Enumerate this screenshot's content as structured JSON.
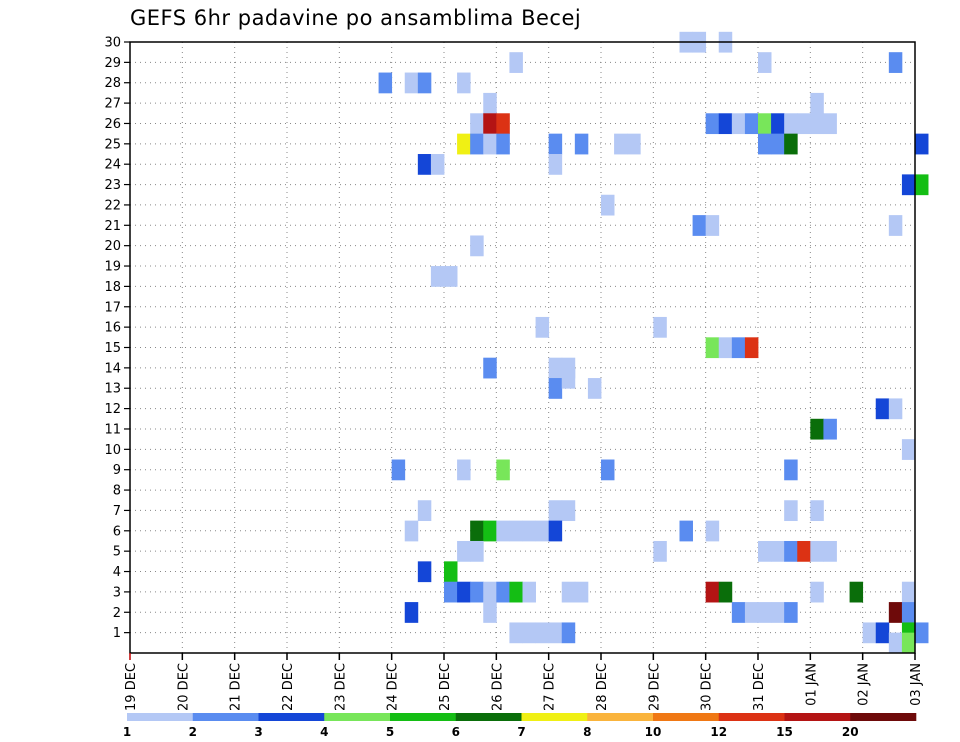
{
  "chart_data": {
    "type": "heatmap",
    "title": "GEFS 6hr padavine po ansamblima Becej",
    "x_ticks": [
      "19 DEC",
      "20 DEC",
      "21 DEC",
      "22 DEC",
      "23 DEC",
      "24 DEC",
      "25 DEC",
      "26 DEC",
      "27 DEC",
      "28 DEC",
      "29 DEC",
      "30 DEC",
      "31 DEC",
      "01 JAN",
      "02 JAN",
      "03 JAN"
    ],
    "x_range_days": [
      0,
      15
    ],
    "y_ticks": [
      1,
      2,
      3,
      4,
      5,
      6,
      7,
      8,
      9,
      10,
      11,
      12,
      13,
      14,
      15,
      16,
      17,
      18,
      19,
      20,
      21,
      22,
      23,
      24,
      25,
      26,
      27,
      28,
      29,
      30
    ],
    "y_range": [
      0,
      30
    ],
    "grid": true,
    "legend": {
      "placement": "bottom",
      "labels": [
        "1",
        "2",
        "3",
        "4",
        "5",
        "6",
        "7",
        "8",
        "10",
        "12",
        "15",
        "20"
      ],
      "colors": [
        "#b4c8f5",
        "#5a8cf0",
        "#1446d7",
        "#78e65a",
        "#14be14",
        "#0a6e0a",
        "#f0f014",
        "#fab43c",
        "#f07814",
        "#dc3214",
        "#b41414",
        "#6e0a0a"
      ]
    },
    "cell_width_days": 0.25,
    "cells": [
      {
        "x": 10.5,
        "y": 30,
        "c": 1
      },
      {
        "x": 10.75,
        "y": 30,
        "c": 1
      },
      {
        "x": 11.25,
        "y": 30,
        "c": 1
      },
      {
        "x": 7.25,
        "y": 29,
        "c": 1
      },
      {
        "x": 12.0,
        "y": 29,
        "c": 1
      },
      {
        "x": 14.5,
        "y": 29,
        "c": 2
      },
      {
        "x": 4.75,
        "y": 28,
        "c": 2
      },
      {
        "x": 5.25,
        "y": 28,
        "c": 1
      },
      {
        "x": 5.5,
        "y": 28,
        "c": 2
      },
      {
        "x": 6.25,
        "y": 28,
        "c": 1
      },
      {
        "x": 6.75,
        "y": 27,
        "c": 1
      },
      {
        "x": 13.0,
        "y": 27,
        "c": 1
      },
      {
        "x": 6.5,
        "y": 26,
        "c": 1
      },
      {
        "x": 6.75,
        "y": 26,
        "c": 11
      },
      {
        "x": 7.0,
        "y": 26,
        "c": 10
      },
      {
        "x": 11.0,
        "y": 26,
        "c": 2
      },
      {
        "x": 11.25,
        "y": 26,
        "c": 3
      },
      {
        "x": 11.5,
        "y": 26,
        "c": 1
      },
      {
        "x": 11.75,
        "y": 26,
        "c": 2
      },
      {
        "x": 12.0,
        "y": 26,
        "c": 4
      },
      {
        "x": 12.25,
        "y": 26,
        "c": 3
      },
      {
        "x": 12.5,
        "y": 26,
        "c": 1
      },
      {
        "x": 12.75,
        "y": 26,
        "c": 1
      },
      {
        "x": 13.0,
        "y": 26,
        "c": 1
      },
      {
        "x": 13.25,
        "y": 26,
        "c": 1
      },
      {
        "x": 6.25,
        "y": 25,
        "c": 7
      },
      {
        "x": 6.5,
        "y": 25,
        "c": 2
      },
      {
        "x": 6.75,
        "y": 25,
        "c": 1
      },
      {
        "x": 7.0,
        "y": 25,
        "c": 2
      },
      {
        "x": 8.0,
        "y": 25,
        "c": 2
      },
      {
        "x": 8.5,
        "y": 25,
        "c": 2
      },
      {
        "x": 9.25,
        "y": 25,
        "c": 1
      },
      {
        "x": 9.5,
        "y": 25,
        "c": 1
      },
      {
        "x": 12.0,
        "y": 25,
        "c": 2
      },
      {
        "x": 12.25,
        "y": 25,
        "c": 2
      },
      {
        "x": 12.5,
        "y": 25,
        "c": 6
      },
      {
        "x": 15.0,
        "y": 25,
        "c": 3
      },
      {
        "x": 5.5,
        "y": 24,
        "c": 3
      },
      {
        "x": 5.75,
        "y": 24,
        "c": 1
      },
      {
        "x": 8.0,
        "y": 24,
        "c": 1
      },
      {
        "x": 14.75,
        "y": 23,
        "c": 3
      },
      {
        "x": 15.0,
        "y": 23,
        "c": 5
      },
      {
        "x": 9.0,
        "y": 22,
        "c": 1
      },
      {
        "x": 10.75,
        "y": 21,
        "c": 2
      },
      {
        "x": 11.0,
        "y": 21,
        "c": 1
      },
      {
        "x": 14.5,
        "y": 21,
        "c": 1
      },
      {
        "x": 6.5,
        "y": 20,
        "c": 1
      },
      {
        "x": 5.75,
        "y": 18.5,
        "c": 1
      },
      {
        "x": 6.0,
        "y": 18.5,
        "c": 1
      },
      {
        "x": 7.75,
        "y": 16,
        "c": 1
      },
      {
        "x": 10.0,
        "y": 16,
        "c": 1
      },
      {
        "x": 11.0,
        "y": 15,
        "c": 4
      },
      {
        "x": 11.25,
        "y": 15,
        "c": 1
      },
      {
        "x": 11.5,
        "y": 15,
        "c": 2
      },
      {
        "x": 11.75,
        "y": 15,
        "c": 10
      },
      {
        "x": 6.75,
        "y": 14,
        "c": 2
      },
      {
        "x": 8.0,
        "y": 14,
        "c": 1
      },
      {
        "x": 8.25,
        "y": 14,
        "c": 1
      },
      {
        "x": 8.0,
        "y": 13,
        "c": 2
      },
      {
        "x": 8.25,
        "y": 13.5,
        "c": 1
      },
      {
        "x": 8.75,
        "y": 13,
        "c": 1
      },
      {
        "x": 14.25,
        "y": 12,
        "c": 3
      },
      {
        "x": 14.5,
        "y": 12,
        "c": 1
      },
      {
        "x": 13.0,
        "y": 11,
        "c": 6
      },
      {
        "x": 13.25,
        "y": 11,
        "c": 2
      },
      {
        "x": 14.75,
        "y": 10,
        "c": 1
      },
      {
        "x": 5.0,
        "y": 9,
        "c": 2
      },
      {
        "x": 6.25,
        "y": 9,
        "c": 1
      },
      {
        "x": 7.0,
        "y": 9,
        "c": 4
      },
      {
        "x": 9.0,
        "y": 9,
        "c": 2
      },
      {
        "x": 12.5,
        "y": 9,
        "c": 2
      },
      {
        "x": 5.5,
        "y": 7,
        "c": 1
      },
      {
        "x": 8.0,
        "y": 7,
        "c": 1
      },
      {
        "x": 8.25,
        "y": 7,
        "c": 1
      },
      {
        "x": 12.5,
        "y": 7,
        "c": 1
      },
      {
        "x": 13.0,
        "y": 7,
        "c": 1
      },
      {
        "x": 5.25,
        "y": 6,
        "c": 1
      },
      {
        "x": 6.5,
        "y": 6,
        "c": 6
      },
      {
        "x": 6.75,
        "y": 6,
        "c": 5
      },
      {
        "x": 7.0,
        "y": 6,
        "c": 1
      },
      {
        "x": 7.25,
        "y": 6,
        "c": 1
      },
      {
        "x": 7.5,
        "y": 6,
        "c": 1
      },
      {
        "x": 7.75,
        "y": 6,
        "c": 1
      },
      {
        "x": 8.0,
        "y": 6,
        "c": 3
      },
      {
        "x": 10.5,
        "y": 6,
        "c": 2
      },
      {
        "x": 11.0,
        "y": 6,
        "c": 1
      },
      {
        "x": 6.25,
        "y": 5,
        "c": 1
      },
      {
        "x": 6.5,
        "y": 5,
        "c": 1
      },
      {
        "x": 10.0,
        "y": 5,
        "c": 1
      },
      {
        "x": 12.0,
        "y": 5,
        "c": 1
      },
      {
        "x": 12.25,
        "y": 5,
        "c": 1
      },
      {
        "x": 12.5,
        "y": 5,
        "c": 2
      },
      {
        "x": 12.75,
        "y": 5,
        "c": 10
      },
      {
        "x": 13.0,
        "y": 5,
        "c": 1
      },
      {
        "x": 13.25,
        "y": 5,
        "c": 1
      },
      {
        "x": 5.5,
        "y": 4,
        "c": 3
      },
      {
        "x": 6.0,
        "y": 4,
        "c": 5
      },
      {
        "x": 6.0,
        "y": 3,
        "c": 2
      },
      {
        "x": 6.25,
        "y": 3,
        "c": 3
      },
      {
        "x": 6.5,
        "y": 3,
        "c": 2
      },
      {
        "x": 6.75,
        "y": 3,
        "c": 1
      },
      {
        "x": 7.0,
        "y": 3,
        "c": 2
      },
      {
        "x": 7.25,
        "y": 3,
        "c": 5
      },
      {
        "x": 7.5,
        "y": 3,
        "c": 1
      },
      {
        "x": 8.25,
        "y": 3,
        "c": 1
      },
      {
        "x": 8.5,
        "y": 3,
        "c": 1
      },
      {
        "x": 11.0,
        "y": 3,
        "c": 11
      },
      {
        "x": 11.25,
        "y": 3,
        "c": 6
      },
      {
        "x": 13.0,
        "y": 3,
        "c": 1
      },
      {
        "x": 13.75,
        "y": 3,
        "c": 6
      },
      {
        "x": 14.75,
        "y": 3,
        "c": 1
      },
      {
        "x": 5.25,
        "y": 2,
        "c": 3
      },
      {
        "x": 6.75,
        "y": 2,
        "c": 1
      },
      {
        "x": 11.5,
        "y": 2,
        "c": 2
      },
      {
        "x": 11.75,
        "y": 2,
        "c": 1
      },
      {
        "x": 12.0,
        "y": 2,
        "c": 1
      },
      {
        "x": 12.25,
        "y": 2,
        "c": 1
      },
      {
        "x": 12.5,
        "y": 2,
        "c": 2
      },
      {
        "x": 14.5,
        "y": 2,
        "c": 12
      },
      {
        "x": 14.75,
        "y": 2,
        "c": 2
      },
      {
        "x": 7.25,
        "y": 1,
        "c": 1
      },
      {
        "x": 7.5,
        "y": 1,
        "c": 1
      },
      {
        "x": 7.75,
        "y": 1,
        "c": 1
      },
      {
        "x": 8.0,
        "y": 1,
        "c": 1
      },
      {
        "x": 8.25,
        "y": 1,
        "c": 2
      },
      {
        "x": 14.0,
        "y": 1,
        "c": 1
      },
      {
        "x": 14.25,
        "y": 1,
        "c": 3
      },
      {
        "x": 14.75,
        "y": 1,
        "c": 5
      },
      {
        "x": 15.0,
        "y": 1,
        "c": 2
      },
      {
        "x": 14.5,
        "y": 0.5,
        "c": 1
      },
      {
        "x": 14.75,
        "y": 0.5,
        "c": 4
      }
    ]
  }
}
